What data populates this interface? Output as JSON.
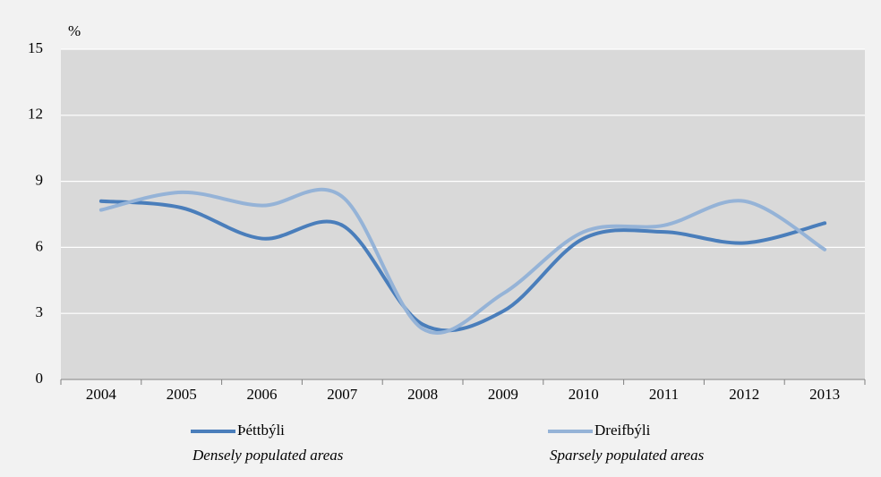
{
  "chart_data": {
    "type": "line",
    "y_label": "%",
    "categories": [
      "2004",
      "2005",
      "2006",
      "2007",
      "2008",
      "2009",
      "2010",
      "2011",
      "2012",
      "2013"
    ],
    "series": [
      {
        "name": "Þéttbýli",
        "description": "Densely populated areas",
        "color": "#4a7ebb",
        "values": [
          8.1,
          7.8,
          6.4,
          7.0,
          2.5,
          3.1,
          6.4,
          6.7,
          6.2,
          7.1
        ]
      },
      {
        "name": "Dreifbýli",
        "description": "Sparsely populated areas",
        "color": "#95b3d7",
        "values": [
          7.7,
          8.5,
          7.9,
          8.3,
          2.3,
          3.9,
          6.7,
          7.0,
          8.1,
          5.9
        ]
      }
    ],
    "ylim": [
      0,
      15
    ],
    "yticks": [
      0,
      3,
      6,
      9,
      12,
      15
    ],
    "grid": true,
    "smooth": true
  }
}
